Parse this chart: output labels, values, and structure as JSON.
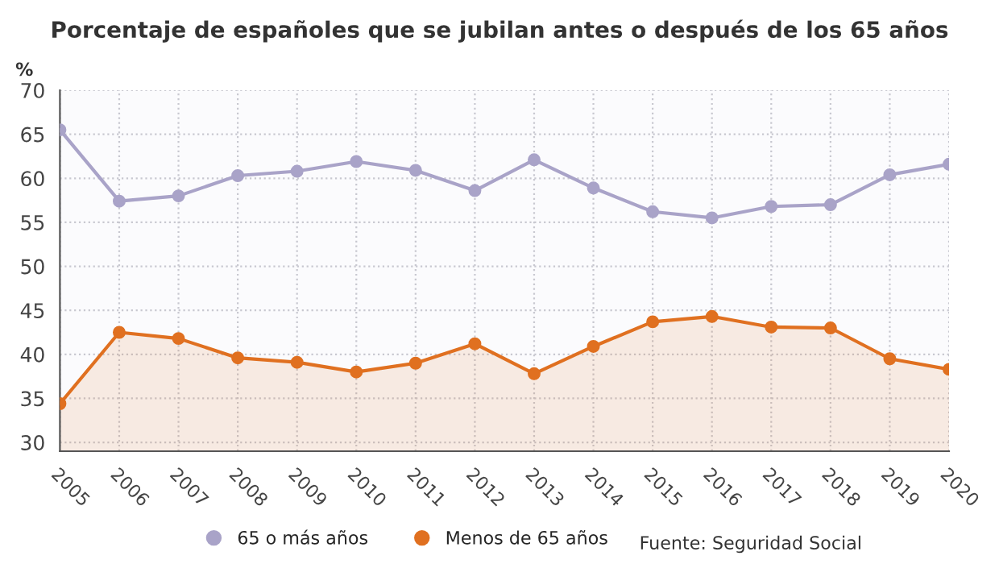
{
  "chart_data": {
    "type": "line",
    "title": "Porcentaje de españoles que se jubilan antes o después de los 65 años",
    "ylabel": "%",
    "x": [
      2005,
      2006,
      2007,
      2008,
      2009,
      2010,
      2011,
      2012,
      2013,
      2014,
      2015,
      2016,
      2017,
      2018,
      2019,
      2020
    ],
    "series": [
      {
        "name": "65 o más años",
        "color": "#a9a3c8",
        "values": [
          65.5,
          57.4,
          58.0,
          60.3,
          60.8,
          61.9,
          60.9,
          58.6,
          62.1,
          58.9,
          56.2,
          55.5,
          56.8,
          57.0,
          60.4,
          61.6
        ]
      },
      {
        "name": "Menos de 65 años",
        "type": "area",
        "color": "#e07020",
        "values": [
          34.4,
          42.5,
          41.8,
          39.6,
          39.1,
          38.0,
          39.0,
          41.2,
          37.8,
          40.9,
          43.7,
          44.3,
          43.1,
          43.0,
          39.5,
          38.3
        ]
      }
    ],
    "xlim": [
      2005,
      2020
    ],
    "xticks": [
      2005,
      2006,
      2007,
      2008,
      2009,
      2010,
      2011,
      2012,
      2013,
      2014,
      2015,
      2016,
      2017,
      2018,
      2019,
      2020
    ],
    "ylim": [
      29,
      70
    ],
    "yticks": [
      30,
      35,
      40,
      45,
      50,
      55,
      60,
      65,
      70
    ],
    "grid": true,
    "marker": "circle",
    "line_style": "solid",
    "legend": "bottom",
    "annotations": [
      "Fuente: Seguridad Social"
    ]
  }
}
